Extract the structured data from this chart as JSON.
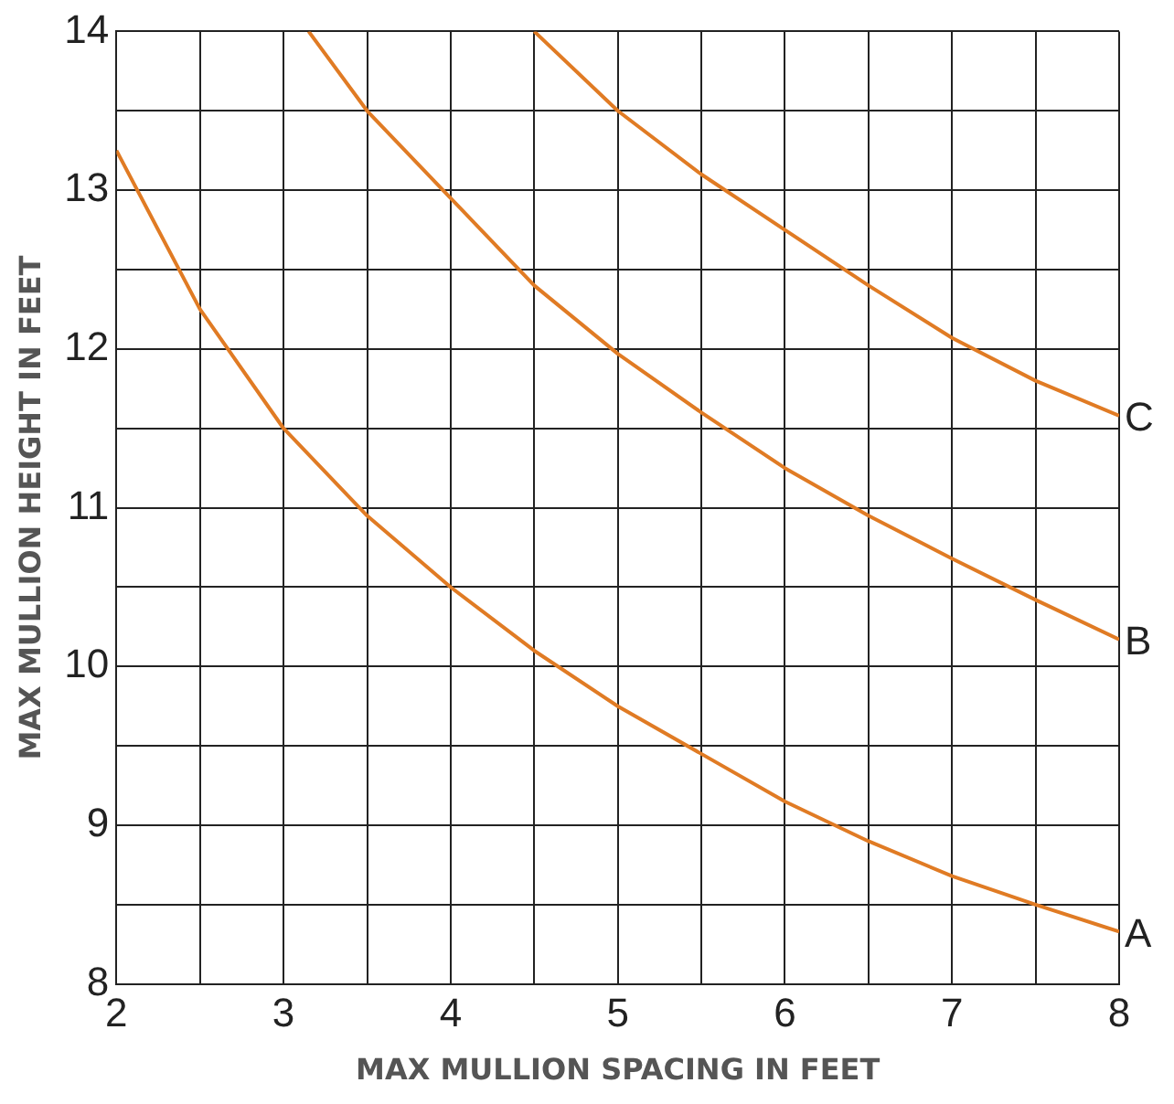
{
  "chart_data": {
    "type": "line",
    "xlabel": "MAX MULLION SPACING IN FEET",
    "ylabel": "MAX MULLION HEIGHT IN FEET",
    "xlim": [
      2,
      8
    ],
    "ylim": [
      8,
      14
    ],
    "xticks": [
      2,
      {
        "value": 2.5,
        "label": null
      },
      3,
      {
        "value": 3.5,
        "label": null
      },
      4,
      {
        "value": 4.5,
        "label": null
      },
      5,
      {
        "value": 5.5,
        "label": null
      },
      6,
      {
        "value": 6.5,
        "label": null
      },
      7,
      {
        "value": 7.5,
        "label": null
      },
      8
    ],
    "yticks": [
      8,
      {
        "value": 8.5,
        "label": null
      },
      9,
      {
        "value": 9.5,
        "label": null
      },
      10,
      {
        "value": 10.5,
        "label": null
      },
      11,
      {
        "value": 11.5,
        "label": null
      },
      12,
      {
        "value": 12.5,
        "label": null
      },
      13,
      {
        "value": 13.5,
        "label": null
      },
      14
    ],
    "grid": true,
    "legend": false,
    "marker": "none",
    "line_style": "solid",
    "series": [
      {
        "name": "A",
        "color": "#e07b24",
        "x": [
          2,
          2.5,
          3,
          3.5,
          4,
          4.5,
          5,
          5.5,
          6,
          6.5,
          7,
          7.5,
          8
        ],
        "values": [
          13.25,
          12.25,
          11.5,
          10.95,
          10.5,
          10.1,
          9.75,
          9.45,
          9.15,
          8.9,
          8.68,
          8.5,
          8.33
        ]
      },
      {
        "name": "B",
        "color": "#e07b24",
        "x": [
          3.15,
          3.5,
          4,
          4.5,
          5,
          5.5,
          6,
          6.5,
          7,
          7.5,
          8
        ],
        "values": [
          14,
          13.5,
          12.95,
          12.4,
          11.97,
          11.6,
          11.25,
          10.95,
          10.68,
          10.42,
          10.17
        ]
      },
      {
        "name": "C",
        "color": "#e07b24",
        "x": [
          4.5,
          5,
          5.5,
          6,
          6.5,
          7,
          7.5,
          8
        ],
        "values": [
          14,
          13.5,
          13.1,
          12.75,
          12.4,
          12.07,
          11.8,
          11.58
        ]
      }
    ]
  }
}
